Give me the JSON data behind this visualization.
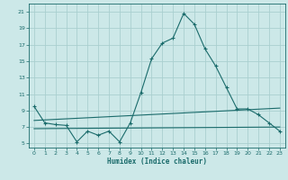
{
  "title": "",
  "xlabel": "Humidex (Indice chaleur)",
  "background_color": "#cce8e8",
  "grid_color": "#aacfcf",
  "line_color": "#1a6b6b",
  "xlim": [
    -0.5,
    23.5
  ],
  "ylim": [
    4.5,
    22.0
  ],
  "xticks": [
    0,
    1,
    2,
    3,
    4,
    5,
    6,
    7,
    8,
    9,
    10,
    11,
    12,
    13,
    14,
    15,
    16,
    17,
    18,
    19,
    20,
    21,
    22,
    23
  ],
  "yticks": [
    5,
    7,
    9,
    11,
    13,
    15,
    17,
    19,
    21
  ],
  "main_x": [
    0,
    1,
    2,
    3,
    4,
    5,
    6,
    7,
    8,
    9,
    10,
    11,
    12,
    13,
    14,
    15,
    16,
    17,
    18,
    19,
    20,
    21,
    22,
    23
  ],
  "main_y": [
    9.5,
    7.5,
    7.3,
    7.2,
    5.2,
    6.5,
    6.0,
    6.5,
    5.2,
    7.5,
    11.2,
    15.3,
    17.2,
    17.8,
    20.8,
    19.5,
    16.5,
    14.4,
    11.8,
    9.2,
    9.2,
    8.5,
    7.5,
    6.5
  ],
  "line1_x": [
    0,
    23
  ],
  "line1_y": [
    6.8,
    7.0
  ],
  "line2_x": [
    0,
    23
  ],
  "line2_y": [
    7.8,
    9.3
  ],
  "figsize": [
    3.2,
    2.0
  ],
  "dpi": 100
}
